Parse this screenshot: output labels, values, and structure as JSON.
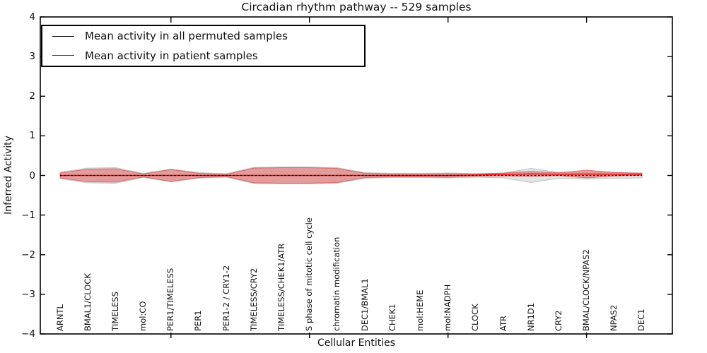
{
  "figure": {
    "title": "Circadian rhythm pathway -- 529 samples",
    "xlabel": "Cellular Entities",
    "ylabel": "Inferred Activity"
  },
  "legend": {
    "items": [
      {
        "label": "Mean activity in all permuted samples",
        "color": "#000000"
      },
      {
        "label": "Mean activity in patient samples",
        "color": "#ff0000"
      }
    ]
  },
  "axes": {
    "yticks": [
      4,
      3,
      2,
      1,
      0,
      -1,
      -2,
      -3,
      -4
    ],
    "ytick_labels": [
      "4",
      "3",
      "2",
      "1",
      "0",
      "−1",
      "−2",
      "−3",
      "−4"
    ],
    "xtick_marks_at_category_index": [
      4,
      9,
      14,
      19
    ]
  },
  "chart_data": {
    "type": "area",
    "title": "Circadian rhythm pathway -- 529 samples",
    "xlabel": "Cellular Entities",
    "ylabel": "Inferred Activity",
    "ylim": [
      -4,
      4
    ],
    "grid": false,
    "legend_position": "upper left",
    "categories": [
      "ARNTL",
      "BMAL1/CLOCK",
      "TIMELESS",
      "mol:CO",
      "PER1/TIMELESS",
      "PER1",
      "PER1-2 / CRY1-2",
      "TIMELESS/CRY2",
      "TIMELESS/CHEK1/ATR",
      "S phase of mitotic cell cycle",
      "chromatin modification",
      "DEC1/BMAL1",
      "CHEK1",
      "mol:HEME",
      "mol:NADPH",
      "CLOCK",
      "ATR",
      "NR1D1",
      "CRY2",
      "BMAL/CLOCK/NPAS2",
      "NPAS2",
      "DEC1"
    ],
    "series": [
      {
        "name": "Mean activity in all permuted samples",
        "style": "dashed",
        "color": "#000000",
        "band_fill": "#c8c8c8",
        "band_edge": "#ababab",
        "mean": [
          0,
          0,
          0,
          0,
          0,
          0,
          0,
          0,
          0,
          0,
          0,
          0,
          0,
          0,
          0,
          0,
          0,
          0,
          0,
          0,
          0,
          0
        ],
        "band_halfwidth": [
          0.08,
          0.187,
          0.196,
          0.053,
          0.16,
          0.071,
          0.045,
          0.205,
          0.214,
          0.214,
          0.196,
          0.071,
          0.053,
          0.053,
          0.062,
          0.045,
          0.062,
          0.178,
          0.071,
          0.089,
          0.071,
          0.062
        ]
      },
      {
        "name": "Mean activity in patient samples",
        "style": "solid",
        "color": "#ff0000",
        "band_fill": "#e25555",
        "band_edge": "#d04545",
        "mean": [
          0,
          0,
          0,
          0,
          0,
          0,
          0,
          0,
          0,
          0,
          0,
          0,
          0,
          0,
          0,
          0.01,
          0.025,
          0.04,
          0.03,
          0.035,
          0.03,
          0.03
        ],
        "band_halfwidth": [
          0.062,
          0.16,
          0.169,
          0.036,
          0.151,
          0.053,
          0.027,
          0.187,
          0.196,
          0.196,
          0.178,
          0.053,
          0.036,
          0.036,
          0.045,
          0.027,
          0.036,
          0.062,
          0.036,
          0.098,
          0.045,
          0.027
        ]
      }
    ]
  }
}
